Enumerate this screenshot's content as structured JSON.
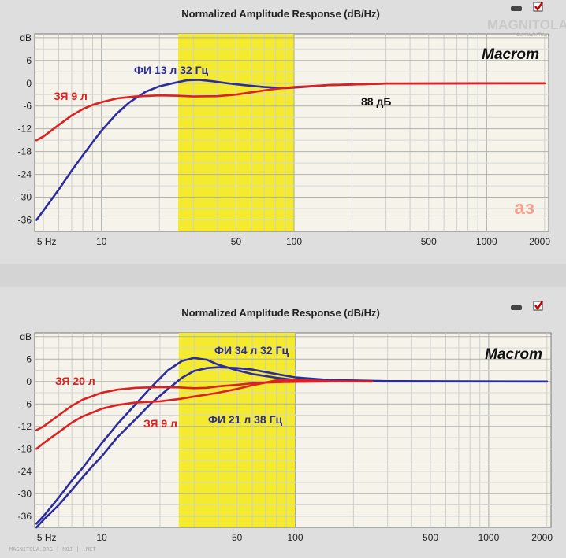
{
  "chart_data": [
    {
      "type": "line",
      "title": "Normalized Amplitude Response (dB/Hz)",
      "brand": "Macrom",
      "x_scale": "log",
      "xlim": [
        4.5,
        2100
      ],
      "ylim": [
        -39,
        13
      ],
      "x_ticks": [
        {
          "v": 5,
          "t": "5 Hz"
        },
        {
          "v": 10,
          "t": "10"
        },
        {
          "v": 50,
          "t": "50"
        },
        {
          "v": 100,
          "t": "100"
        },
        {
          "v": 500,
          "t": "500"
        },
        {
          "v": 1000,
          "t": "1000"
        },
        {
          "v": 2000,
          "t": "2000"
        }
      ],
      "y_unit_label": "dB",
      "y_ticks": [
        {
          "v": 6,
          "t": "6"
        },
        {
          "v": 0,
          "t": "0"
        },
        {
          "v": -6,
          "t": "-6"
        },
        {
          "v": -12,
          "t": "-12"
        },
        {
          "v": -18,
          "t": "-18"
        },
        {
          "v": -24,
          "t": "-24"
        },
        {
          "v": -30,
          "t": "-30"
        },
        {
          "v": -36,
          "t": "-36"
        }
      ],
      "grid": true,
      "highlight_band_hz": [
        25,
        100
      ],
      "series": [
        {
          "name": "ФИ 13 л 32 Гц",
          "color": "#2c2c9c",
          "x": [
            4.6,
            5,
            6,
            7,
            8,
            9,
            10,
            12,
            14,
            17,
            20,
            25,
            28,
            32,
            38,
            45,
            55,
            70,
            90,
            110,
            150,
            300,
            1000,
            2000
          ],
          "y": [
            -36,
            -33.5,
            -28,
            -23,
            -19,
            -15.5,
            -12.5,
            -8,
            -5,
            -2.2,
            -0.8,
            0.3,
            0.8,
            0.9,
            0.5,
            0,
            -0.5,
            -1,
            -1.3,
            -1,
            -0.5,
            -0.1,
            0,
            0
          ]
        },
        {
          "name": "ЗЯ 9 л",
          "color": "#dd2020",
          "x": [
            4.6,
            5,
            6,
            7,
            8,
            9,
            10,
            12,
            15,
            20,
            25,
            30,
            40,
            50,
            60,
            70,
            80,
            100,
            150,
            300,
            2000
          ],
          "y": [
            -15,
            -14,
            -11,
            -8.5,
            -6.8,
            -5.7,
            -5,
            -4,
            -3.5,
            -3.2,
            -3.3,
            -3.5,
            -3.4,
            -3,
            -2.4,
            -1.9,
            -1.5,
            -1,
            -0.5,
            -0.1,
            0
          ]
        }
      ],
      "annotations": [
        {
          "text": "ФИ 13 л 32 Гц",
          "color": "#2c2c9c"
        },
        {
          "text": "ЗЯ 9 л",
          "color": "#dd2020"
        },
        {
          "text": "88 дБ",
          "color": "#111111"
        }
      ],
      "logo_text": "аз",
      "watermark": "MAGNITOLA",
      "watermark_sub": "Car Audio Team"
    },
    {
      "type": "line",
      "title": "Normalized Amplitude Response (dB/Hz)",
      "brand": "Macrom",
      "x_scale": "log",
      "xlim": [
        4.5,
        2100
      ],
      "ylim": [
        -39,
        13
      ],
      "x_ticks": [
        {
          "v": 5,
          "t": "5 Hz"
        },
        {
          "v": 10,
          "t": "10"
        },
        {
          "v": 50,
          "t": "50"
        },
        {
          "v": 100,
          "t": "100"
        },
        {
          "v": 500,
          "t": "500"
        },
        {
          "v": 1000,
          "t": "1000"
        },
        {
          "v": 2000,
          "t": "2000"
        }
      ],
      "y_unit_label": "dB",
      "y_ticks": [
        {
          "v": 6,
          "t": "6"
        },
        {
          "v": 0,
          "t": "0"
        },
        {
          "v": -6,
          "t": "-6"
        },
        {
          "v": -12,
          "t": "-12"
        },
        {
          "v": -18,
          "t": "-18"
        },
        {
          "v": -24,
          "t": "-24"
        },
        {
          "v": -30,
          "t": "-30"
        },
        {
          "v": -36,
          "t": "-36"
        }
      ],
      "grid": true,
      "highlight_band_hz": [
        25,
        100
      ],
      "series": [
        {
          "name": "ФИ 34 л 32 Гц",
          "color": "#2c2c9c",
          "x": [
            4.6,
            5,
            6,
            7,
            8,
            9,
            10,
            12,
            15,
            18,
            22,
            26,
            30,
            35,
            40,
            50,
            60,
            80,
            100,
            150,
            300,
            1000,
            2000
          ],
          "y": [
            -38,
            -36,
            -31,
            -26.5,
            -23,
            -19.5,
            -16.5,
            -11.5,
            -6,
            -1.5,
            3,
            5.5,
            6.3,
            5.8,
            4.5,
            3,
            2,
            1,
            0.4,
            0.1,
            0,
            0,
            0
          ]
        },
        {
          "name": "ФИ 21 л 38 Гц",
          "color": "#2c2c9c",
          "x": [
            4.6,
            5,
            6,
            7,
            8,
            9,
            10,
            12,
            15,
            18,
            22,
            26,
            30,
            35,
            40,
            50,
            60,
            80,
            100,
            150,
            300,
            2000
          ],
          "y": [
            -39,
            -37,
            -33,
            -29,
            -25.5,
            -22.5,
            -20,
            -15,
            -10,
            -5.8,
            -2,
            1,
            2.8,
            3.6,
            3.8,
            3.6,
            3.2,
            2,
            1.1,
            0.4,
            0.1,
            0
          ]
        },
        {
          "name": "ЗЯ 20 л",
          "color": "#dd2020",
          "x": [
            4.6,
            5,
            6,
            7,
            8,
            10,
            12,
            15,
            20,
            25,
            30,
            35,
            40,
            50,
            60,
            70,
            80,
            100,
            150,
            250
          ],
          "y": [
            -13,
            -12,
            -9,
            -6.5,
            -4.8,
            -3,
            -2.2,
            -1.7,
            -1.5,
            -1.6,
            -1.8,
            -1.7,
            -1.3,
            -0.9,
            -0.5,
            -0.3,
            -0.2,
            -0.1,
            0,
            0
          ]
        },
        {
          "name": "ЗЯ 9 л",
          "color": "#dd2020",
          "x": [
            4.6,
            5,
            6,
            7,
            8,
            10,
            12,
            15,
            20,
            25,
            30,
            35,
            40,
            50,
            60,
            70,
            80,
            100,
            150,
            250
          ],
          "y": [
            -18,
            -16.5,
            -13.5,
            -11,
            -9.3,
            -7.3,
            -6.3,
            -5.6,
            -5.3,
            -4.7,
            -4,
            -3.5,
            -3,
            -2,
            -1,
            -0.3,
            0.3,
            0.4,
            0.1,
            0
          ]
        }
      ],
      "annotations": [
        {
          "text": "ФИ 34 л 32 Гц",
          "color": "#2c2c9c"
        },
        {
          "text": "ЗЯ 20 л",
          "color": "#dd2020"
        },
        {
          "text": "ЗЯ 9 л",
          "color": "#dd2020"
        },
        {
          "text": "ФИ 21 л 38 Гц",
          "color": "#2c2c9c"
        }
      ],
      "footer": "MAGNITOLA.ORG | MOJ | .NET"
    }
  ]
}
